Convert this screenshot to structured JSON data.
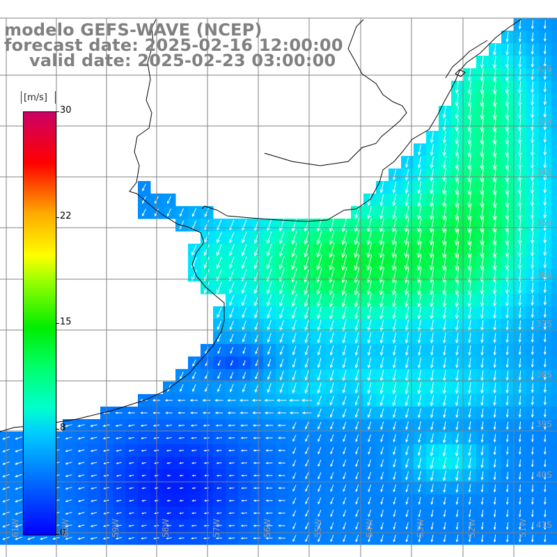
{
  "title": {
    "line1": "modelo GEFS-WAVE (NCEP)",
    "line2": "forecast date: 2025-02-16 12:00:00",
    "line3": "valid date: 2025-02-23 03:00:00"
  },
  "legend": {
    "unit": "[m/s]",
    "ticks": [
      "30",
      "22",
      "15",
      "8",
      "0"
    ],
    "range": [
      0,
      30
    ],
    "gradient_colors": [
      "#0000ff",
      "#00ccff",
      "#00ff66",
      "#00ee00",
      "#ffff00",
      "#ff5500",
      "#ff0000",
      "#cc0066"
    ]
  },
  "axes": {
    "latitude_labels": [
      "32S",
      "33S",
      "34S",
      "35S",
      "36S",
      "37S",
      "38S",
      "39S",
      "40S",
      "41S"
    ],
    "longitude_labels": [
      "61W",
      "60W",
      "59W",
      "58W",
      "57W",
      "56W",
      "55W",
      "54W",
      "53W",
      "52W",
      "51W"
    ]
  },
  "colors": {
    "land": "#ffffff",
    "grid": "#808080",
    "coastline": "#000000",
    "arrows": "#ffffff",
    "title": "#808080"
  }
}
